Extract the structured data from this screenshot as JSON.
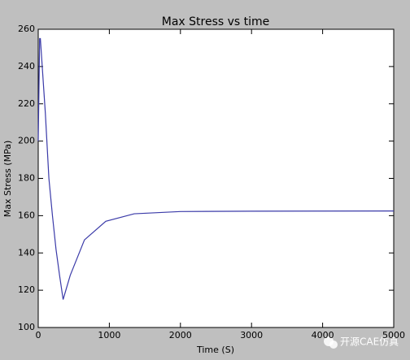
{
  "chart_data": {
    "type": "line",
    "title": "Max Stress vs time",
    "x_label": "Time (S)",
    "y_label": "Max Stress (MPa)",
    "x": [
      0,
      20,
      30,
      100,
      150,
      200,
      250,
      300,
      350,
      450,
      650,
      950,
      1350,
      2000,
      3000,
      5000
    ],
    "series": [
      {
        "name": "Max Stress",
        "color": "#3a3aa8",
        "values": [
          200,
          255,
          255,
          215,
          180,
          160,
          142,
          128,
          115,
          128,
          147,
          157,
          161,
          162.2,
          162.4,
          162.5
        ]
      }
    ],
    "xlim": [
      0,
      5000
    ],
    "xticks": [
      0,
      1000,
      2000,
      3000,
      4000,
      5000
    ],
    "ylim": [
      100,
      260
    ],
    "yticks": [
      100,
      120,
      140,
      160,
      180,
      200,
      220,
      240,
      260
    ],
    "grid": false,
    "watermark": "开源CAE仿真"
  }
}
